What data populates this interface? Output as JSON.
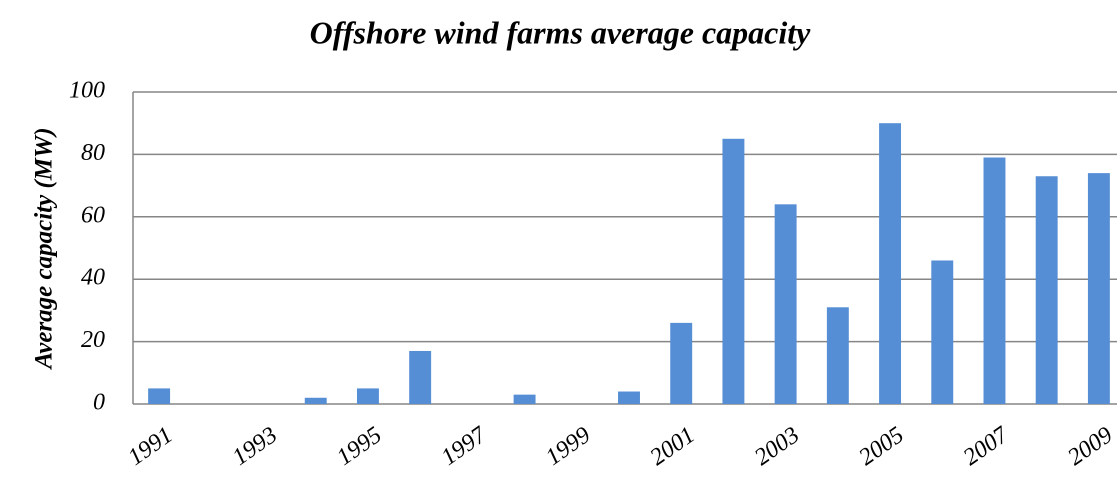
{
  "chart_data": {
    "type": "bar",
    "title": "Offshore wind farms average capacity",
    "y_label": "Average capacity (MW)",
    "categories": [
      "1991",
      null,
      "1993",
      null,
      "1995",
      null,
      "1997",
      null,
      "1999",
      null,
      "2001",
      null,
      "2003",
      null,
      "2005",
      null,
      "2007",
      null,
      "2009"
    ],
    "values": [
      5,
      0,
      0,
      2,
      5,
      17,
      0,
      3,
      0,
      4,
      26,
      85,
      64,
      31,
      90,
      46,
      79,
      73,
      74
    ],
    "color": "#558ed5",
    "ylim": [
      0,
      100
    ],
    "yticks": [
      0,
      20,
      40,
      60,
      80,
      100
    ],
    "grid": true
  }
}
